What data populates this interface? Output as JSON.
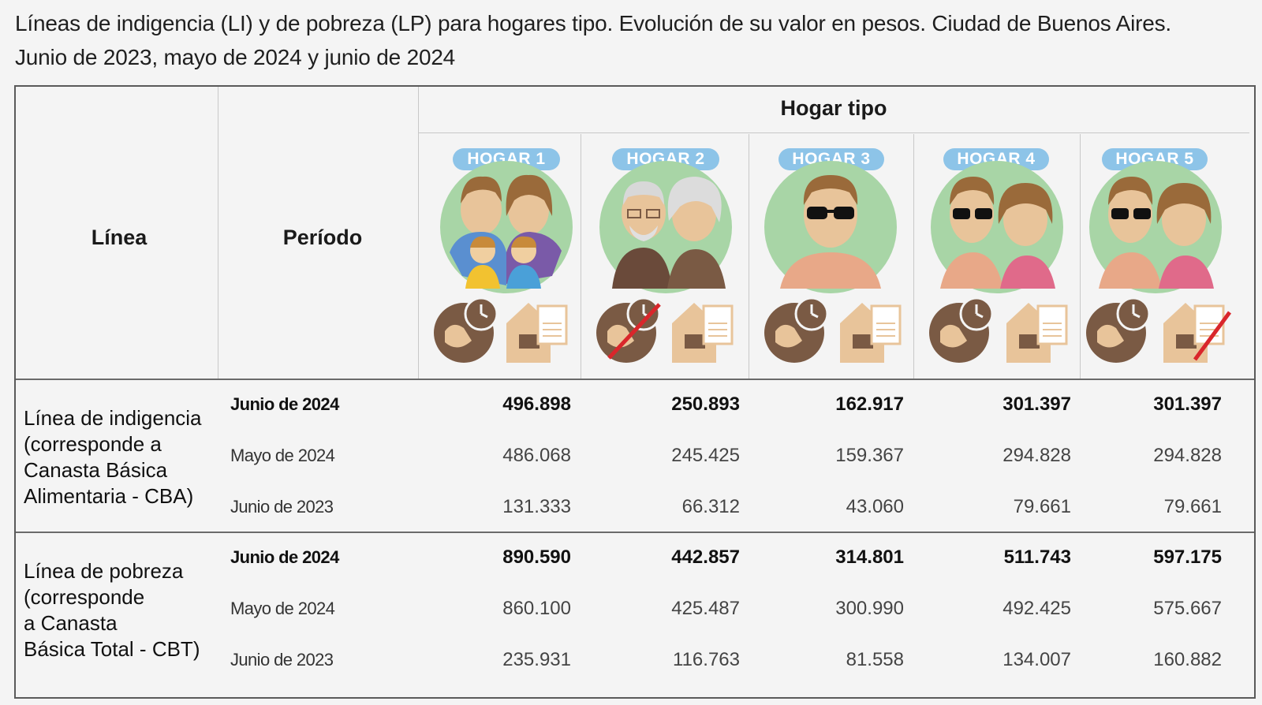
{
  "title": {
    "line1": "Líneas de indigencia (LI) y de pobreza (LP) para hogares tipo. Evolución de su valor en pesos. Ciudad de Buenos Aires.",
    "line2": "Junio de 2023, mayo de 2024 y junio de 2024"
  },
  "header": {
    "linea": "Línea",
    "periodo": "Período",
    "hogar_tipo": "Hogar tipo",
    "hogares": [
      {
        "label": "HOGAR 1",
        "icon": "family-of-four-icon"
      },
      {
        "label": "HOGAR 2",
        "icon": "elderly-couple-icon"
      },
      {
        "label": "HOGAR 3",
        "icon": "single-man-icon"
      },
      {
        "label": "HOGAR 4",
        "icon": "couple-icon"
      },
      {
        "label": "HOGAR 5",
        "icon": "couple-icon"
      }
    ]
  },
  "sections": [
    {
      "label_lines": [
        "Línea de indigencia",
        "(corresponde a",
        "Canasta Básica",
        "Alimentaria - CBA)"
      ],
      "rows": [
        {
          "period": "Junio de 2024",
          "bold": true,
          "values": [
            "496.898",
            "250.893",
            "162.917",
            "301.397",
            "301.397"
          ]
        },
        {
          "period": "Mayo de 2024",
          "bold": false,
          "values": [
            "486.068",
            "245.425",
            "159.367",
            "294.828",
            "294.828"
          ]
        },
        {
          "period": "Junio de 2023",
          "bold": false,
          "values": [
            "131.333",
            "66.312",
            "43.060",
            "79.661",
            "79.661"
          ]
        }
      ]
    },
    {
      "label_lines": [
        "Línea de pobreza",
        "(corresponde",
        "a Canasta",
        "Básica Total - CBT)"
      ],
      "rows": [
        {
          "period": "Junio de 2024",
          "bold": true,
          "values": [
            "890.590",
            "442.857",
            "314.801",
            "511.743",
            "597.175"
          ]
        },
        {
          "period": "Mayo de 2024",
          "bold": false,
          "values": [
            "860.100",
            "425.487",
            "300.990",
            "492.425",
            "575.667"
          ]
        },
        {
          "period": "Junio de 2023",
          "bold": false,
          "values": [
            "235.931",
            "116.763",
            "81.558",
            "134.007",
            "160.882"
          ]
        }
      ]
    }
  ],
  "colors": {
    "pill": "#8dc4e8",
    "circle_bg": "#a8d5a6",
    "icon_brown": "#7a5a44",
    "icon_tan": "#e8c49a",
    "strike_red": "#d9262b"
  }
}
